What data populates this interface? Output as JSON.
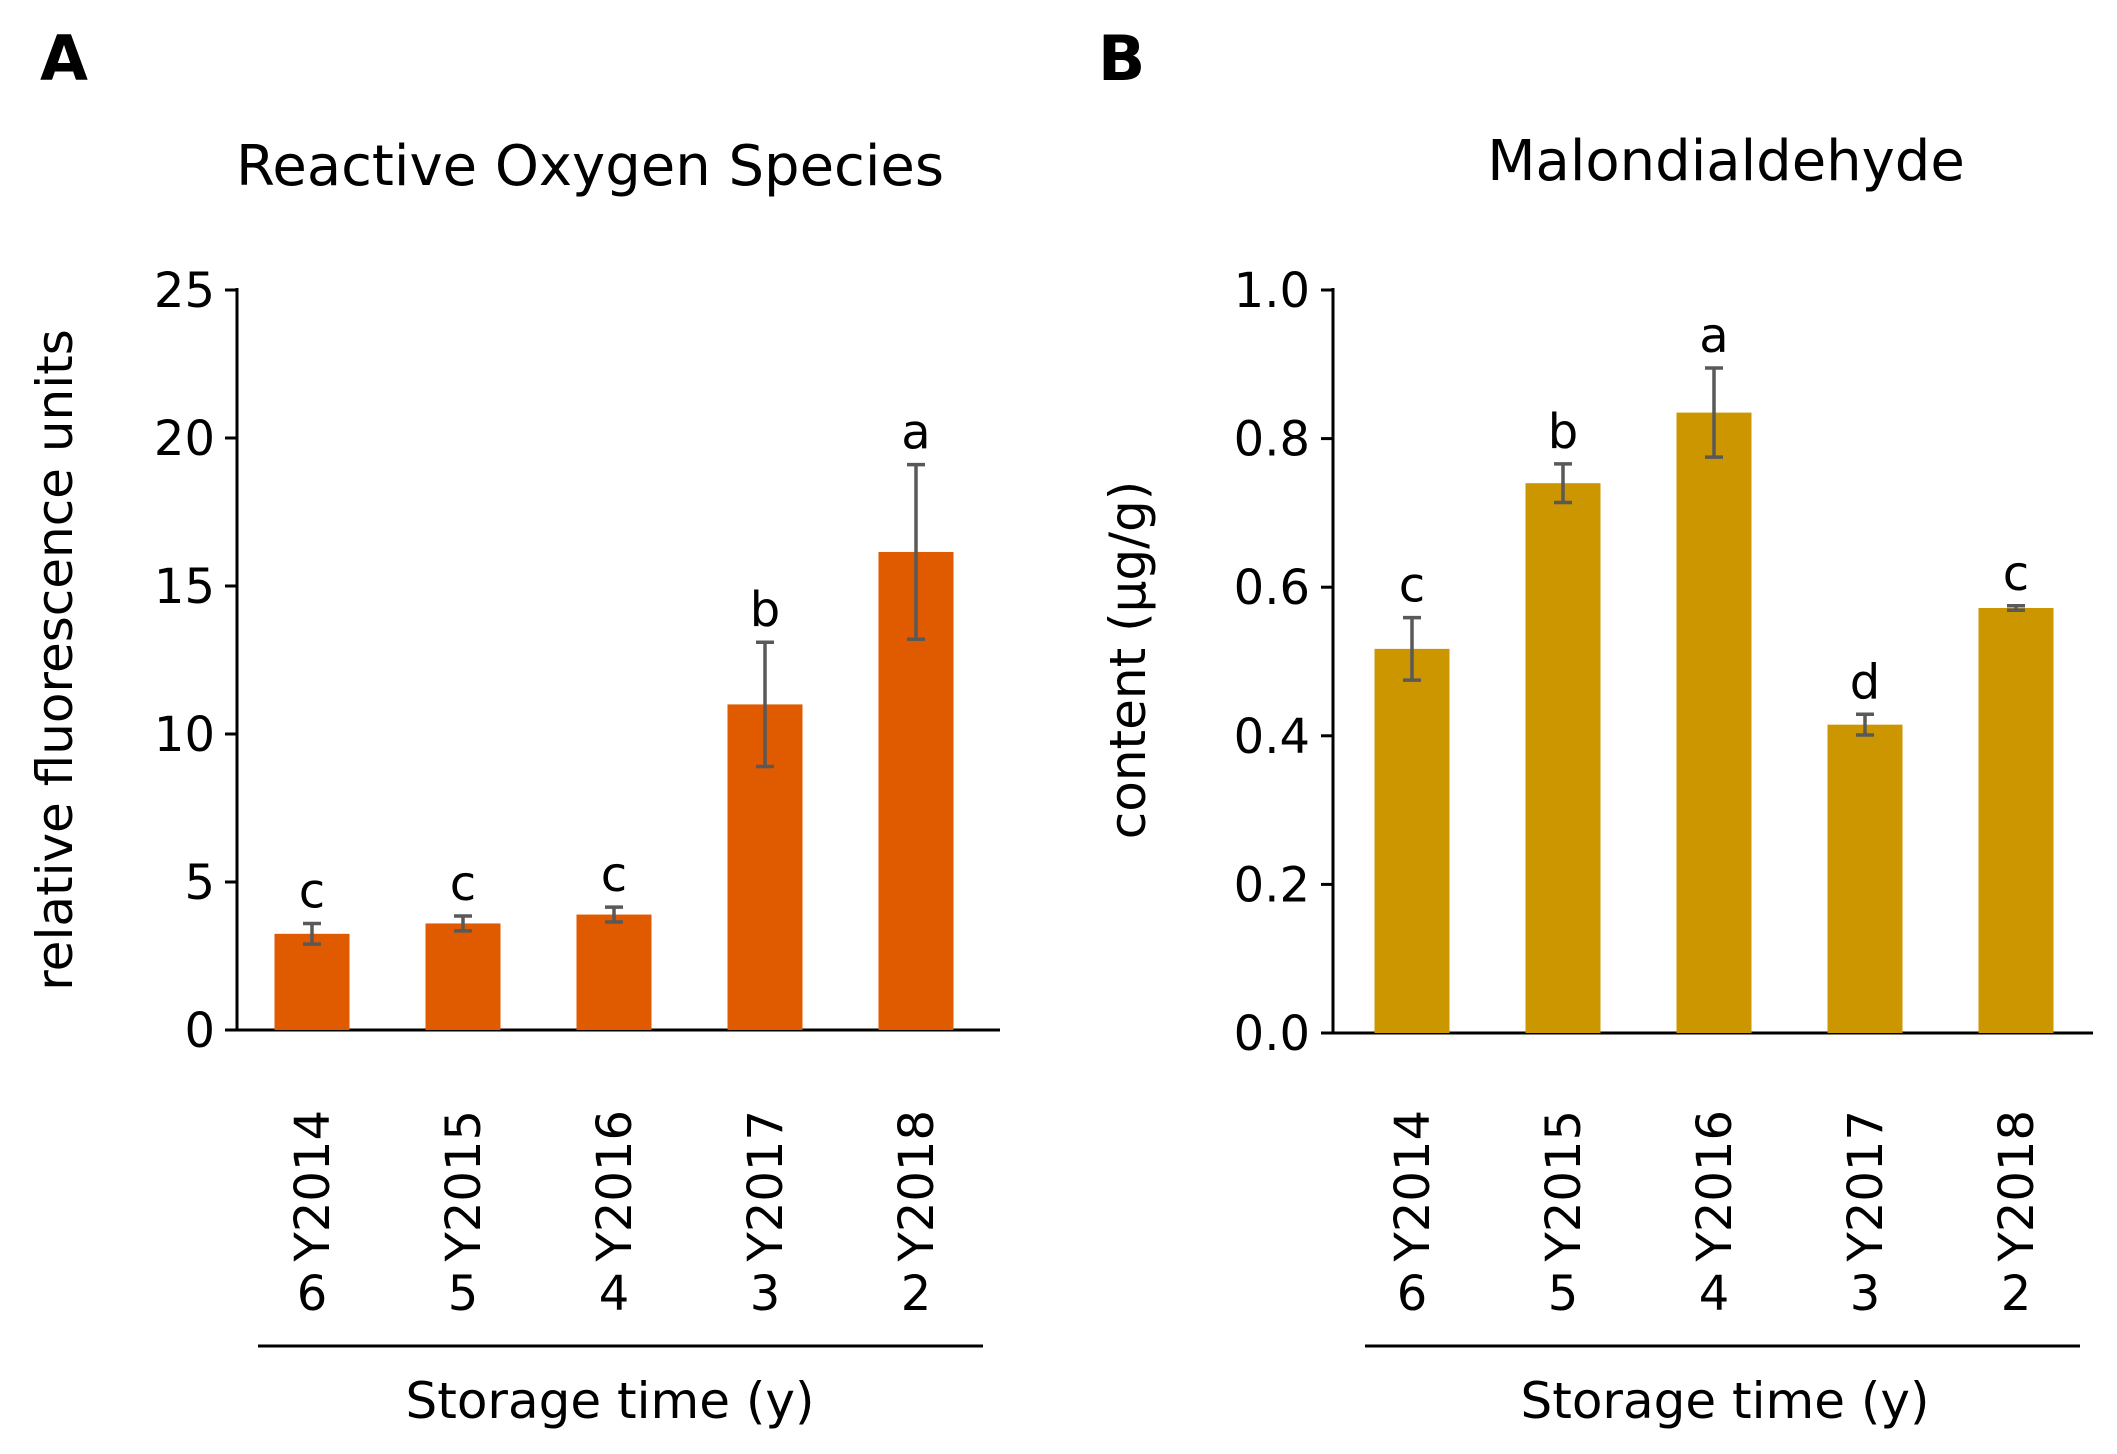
{
  "chart_data": [
    {
      "panel": "A",
      "type": "bar",
      "title": "Reactive Oxygen Species",
      "ylabel": "relative fluorescence units",
      "xlabel": "Storage time (y)",
      "categories": [
        "Y2014",
        "Y2015",
        "Y2016",
        "Y2017",
        "Y2018"
      ],
      "storage_years": [
        "6",
        "5",
        "4",
        "3",
        "2"
      ],
      "values": [
        3.25,
        3.6,
        3.9,
        11.0,
        16.15
      ],
      "errors": [
        0.35,
        0.25,
        0.25,
        2.1,
        2.95
      ],
      "significance": [
        "c",
        "c",
        "c",
        "b",
        "a"
      ],
      "ylim": [
        0,
        25
      ],
      "yticks": [
        "0",
        "5",
        "10",
        "15",
        "20",
        "25"
      ],
      "color": "#e05a00",
      "grid": false
    },
    {
      "panel": "B",
      "type": "bar",
      "title": "Malondialdehyde",
      "ylabel": "content (µg/g)",
      "xlabel": "Storage time (y)",
      "categories": [
        "Y2014",
        "Y2015",
        "Y2016",
        "Y2017",
        "Y2018"
      ],
      "storage_years": [
        "6",
        "5",
        "4",
        "3",
        "2"
      ],
      "values": [
        0.517,
        0.74,
        0.835,
        0.415,
        0.572
      ],
      "errors": [
        0.042,
        0.026,
        0.06,
        0.014,
        0.003
      ],
      "significance": [
        "c",
        "b",
        "a",
        "d",
        "c"
      ],
      "ylim": [
        0,
        1.0
      ],
      "yticks": [
        "0.0",
        "0.2",
        "0.4",
        "0.6",
        "0.8",
        "1.0"
      ],
      "color": "#cc9600",
      "grid": false
    }
  ]
}
